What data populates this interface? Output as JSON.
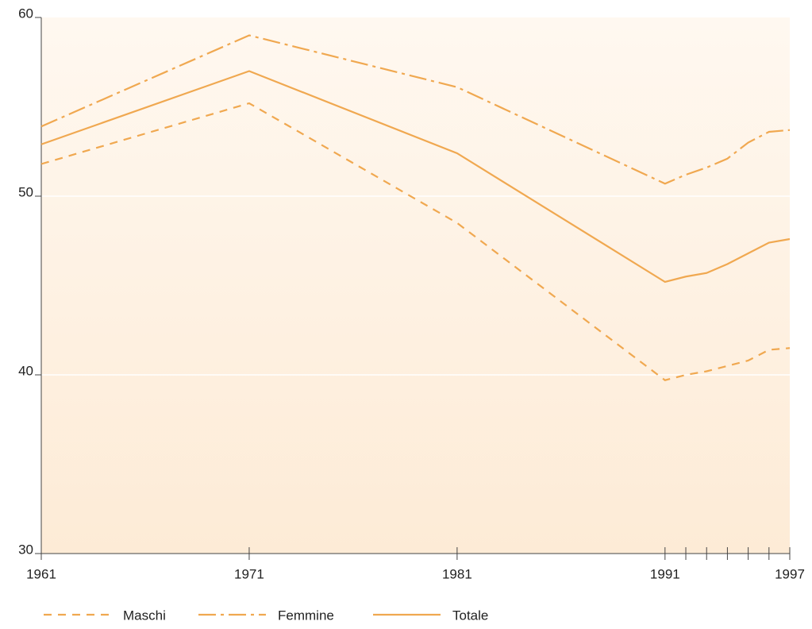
{
  "chart_data": {
    "type": "line",
    "x": [
      1961,
      1971,
      1981,
      1991,
      1992,
      1993,
      1994,
      1995,
      1996,
      1997
    ],
    "series": [
      {
        "name": "Maschi",
        "color": "#f0a850",
        "dash": "dashed",
        "values": [
          51.8,
          55.2,
          48.5,
          39.7,
          40.0,
          40.2,
          40.5,
          40.8,
          41.4,
          41.5
        ]
      },
      {
        "name": "Femmine",
        "color": "#f0a850",
        "dash": "dashdot",
        "values": [
          53.9,
          59.0,
          56.1,
          50.7,
          51.2,
          51.6,
          52.1,
          53.0,
          53.6,
          53.7
        ]
      },
      {
        "name": "Totale",
        "color": "#f0a850",
        "dash": "solid",
        "values": [
          52.9,
          57.0,
          52.4,
          45.2,
          45.5,
          45.7,
          46.2,
          46.8,
          47.4,
          47.6
        ]
      }
    ],
    "xlim": [
      1961,
      1997
    ],
    "xticks": [
      1961,
      1971,
      1981,
      1991,
      1997
    ],
    "xminorticks": [
      1992,
      1993,
      1994,
      1995,
      1996
    ],
    "ylim": [
      30,
      60
    ],
    "yticks": [
      30,
      40,
      50,
      60
    ],
    "grid": true,
    "background": "#fdefdf",
    "legend": "bottom"
  }
}
